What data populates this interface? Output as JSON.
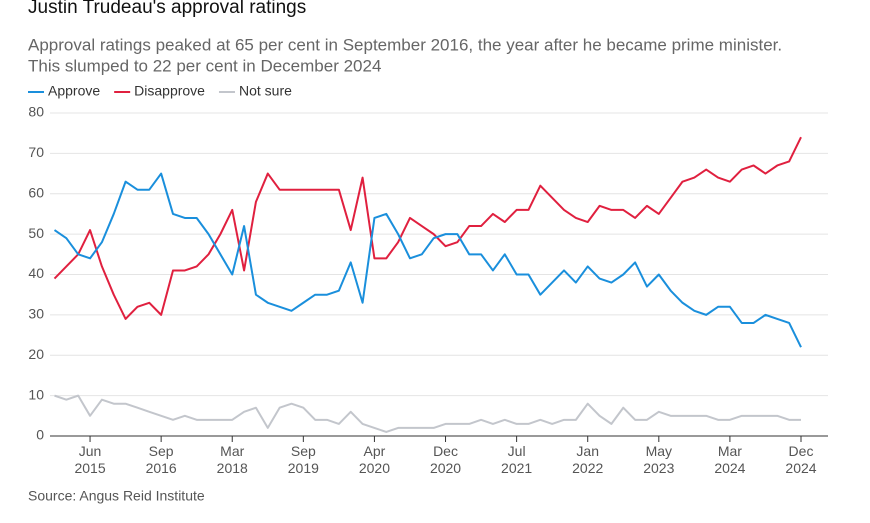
{
  "chart_data": {
    "type": "line",
    "title": "Justin Trudeau's approval ratings",
    "subtitle": [
      "Approval ratings peaked at 65 per cent in September 2016, the year after he became prime minister.",
      "This slumped to 22 per cent in December 2024"
    ],
    "source": "Source: Angus Reid Institute",
    "categories": [
      null,
      null,
      null,
      "Jun 2015",
      null,
      null,
      null,
      null,
      null,
      "Sep 2016",
      null,
      null,
      null,
      null,
      null,
      "Mar 2018",
      null,
      null,
      null,
      null,
      null,
      "Sep 2019",
      null,
      null,
      null,
      null,
      null,
      "Apr 2020",
      null,
      null,
      null,
      null,
      null,
      "Dec 2020",
      null,
      null,
      null,
      null,
      null,
      "Jul 2021",
      null,
      null,
      null,
      null,
      null,
      "Jan 2022",
      null,
      null,
      null,
      null,
      null,
      "May 2023",
      null,
      null,
      null,
      null,
      null,
      "Mar 2024",
      null,
      null,
      null,
      null,
      null,
      "Dec 2024"
    ],
    "series": [
      {
        "name": "Approve",
        "color": "#1a8fdc",
        "values": [
          51,
          49,
          45,
          44,
          48,
          55,
          63,
          61,
          61,
          65,
          55,
          54,
          54,
          50,
          45,
          40,
          52,
          35,
          33,
          32,
          31,
          33,
          35,
          35,
          36,
          43,
          33,
          54,
          55,
          50,
          44,
          45,
          49,
          50,
          50,
          45,
          45,
          41,
          45,
          40,
          40,
          35,
          38,
          41,
          38,
          42,
          39,
          38,
          40,
          43,
          37,
          40,
          36,
          33,
          31,
          30,
          32,
          32,
          28,
          28,
          30,
          29,
          28,
          22
        ]
      },
      {
        "name": "Disapprove",
        "color": "#e0203f",
        "values": [
          39,
          42,
          45,
          51,
          42,
          35,
          29,
          32,
          33,
          30,
          41,
          41,
          42,
          45,
          50,
          56,
          41,
          58,
          65,
          61,
          61,
          61,
          61,
          61,
          61,
          51,
          64,
          44,
          44,
          48,
          54,
          52,
          50,
          47,
          48,
          52,
          52,
          55,
          53,
          56,
          56,
          62,
          59,
          56,
          54,
          53,
          57,
          56,
          56,
          54,
          57,
          55,
          59,
          63,
          64,
          66,
          64,
          63,
          66,
          67,
          65,
          67,
          68,
          74
        ]
      },
      {
        "name": "Not sure",
        "color": "#c3c6cc",
        "values": [
          10,
          9,
          10,
          5,
          9,
          8,
          8,
          7,
          6,
          5,
          4,
          5,
          4,
          4,
          4,
          4,
          6,
          7,
          2,
          7,
          8,
          7,
          4,
          4,
          3,
          6,
          3,
          2,
          1,
          2,
          2,
          2,
          2,
          3,
          3,
          3,
          4,
          3,
          4,
          3,
          3,
          4,
          3,
          4,
          4,
          8,
          5,
          3,
          7,
          4,
          4,
          6,
          5,
          5,
          5,
          5,
          4,
          4,
          5,
          5,
          5,
          5,
          4,
          4
        ]
      }
    ],
    "ylim": [
      0,
      80
    ],
    "yticks": [
      0,
      10,
      20,
      30,
      40,
      50,
      60,
      70,
      80
    ],
    "grid": true
  }
}
